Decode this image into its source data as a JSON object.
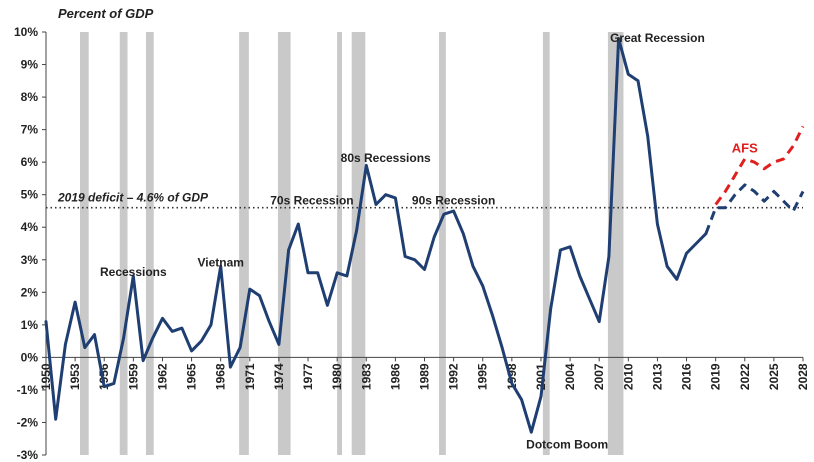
{
  "chart_data": {
    "type": "line",
    "ylabel": "Percent of GDP",
    "ylim": [
      -3,
      10
    ],
    "y_ticks": [
      "-3%",
      "-2%",
      "-1%",
      "0%",
      "1%",
      "2%",
      "3%",
      "4%",
      "5%",
      "6%",
      "7%",
      "8%",
      "9%",
      "10%"
    ],
    "y_tick_values": [
      -3,
      -2,
      -1,
      0,
      1,
      2,
      3,
      4,
      5,
      6,
      7,
      8,
      9,
      10
    ],
    "xlim": [
      1950,
      2028
    ],
    "x_ticks": [
      "1950",
      "1953",
      "1956",
      "1959",
      "1962",
      "1965",
      "1968",
      "1971",
      "1974",
      "1977",
      "1980",
      "1983",
      "1986",
      "1989",
      "1992",
      "1995",
      "1998",
      "2001",
      "2004",
      "2007",
      "2010",
      "2013",
      "2016",
      "2019",
      "2022",
      "2025",
      "2028"
    ],
    "x_tick_values": [
      1950,
      1953,
      1956,
      1959,
      1962,
      1965,
      1968,
      1971,
      1974,
      1977,
      1980,
      1983,
      1986,
      1989,
      1992,
      1995,
      1998,
      2001,
      2004,
      2007,
      2010,
      2013,
      2016,
      2019,
      2022,
      2025,
      2028
    ],
    "recessions": [
      [
        1953.5,
        1954.4
      ],
      [
        1957.6,
        1958.4
      ],
      [
        1960.3,
        1961.1
      ],
      [
        1969.9,
        1970.9
      ],
      [
        1973.9,
        1975.2
      ],
      [
        1980.0,
        1980.5
      ],
      [
        1981.5,
        1982.9
      ],
      [
        1990.5,
        1991.2
      ],
      [
        2001.2,
        2001.9
      ],
      [
        2007.9,
        2009.5
      ]
    ],
    "series": [
      {
        "color": "#1f3f73",
        "style": "solid",
        "x": [
          1950,
          1951,
          1952,
          1953,
          1954,
          1955,
          1956,
          1957,
          1958,
          1959,
          1960,
          1961,
          1962,
          1963,
          1964,
          1965,
          1966,
          1967,
          1968,
          1969,
          1970,
          1971,
          1972,
          1973,
          1974,
          1975,
          1976,
          1977,
          1978,
          1979,
          1980,
          1981,
          1982,
          1983,
          1984,
          1985,
          1986,
          1987,
          1988,
          1989,
          1990,
          1991,
          1992,
          1993,
          1994,
          1995,
          1996,
          1997,
          1998,
          1999,
          2000,
          2001,
          2002,
          2003,
          2004,
          2005,
          2006,
          2007,
          2008,
          2009,
          2010,
          2011,
          2012,
          2013,
          2014,
          2015,
          2016,
          2017,
          2018
        ],
        "values": [
          1.1,
          -1.9,
          0.4,
          1.7,
          0.3,
          0.7,
          -0.9,
          -0.8,
          0.6,
          2.5,
          -0.1,
          0.6,
          1.2,
          0.8,
          0.9,
          0.2,
          0.5,
          1.0,
          2.8,
          -0.3,
          0.3,
          2.1,
          1.9,
          1.1,
          0.4,
          3.3,
          4.1,
          2.6,
          2.6,
          1.6,
          2.6,
          2.5,
          3.9,
          5.9,
          4.7,
          5.0,
          4.9,
          3.1,
          3.0,
          2.7,
          3.7,
          4.4,
          4.5,
          3.8,
          2.8,
          2.2,
          1.3,
          0.3,
          -0.8,
          -1.3,
          -2.3,
          -1.2,
          1.5,
          3.3,
          3.4,
          2.5,
          1.8,
          1.1,
          3.1,
          9.8,
          8.7,
          8.5,
          6.8,
          4.1,
          2.8,
          2.4,
          3.2,
          3.5,
          3.8
        ]
      },
      {
        "color": "#1f3f73",
        "style": "dashed",
        "x": [
          2018,
          2019,
          2020,
          2021,
          2022,
          2023,
          2024,
          2025,
          2026,
          2027,
          2028
        ],
        "values": [
          3.8,
          4.6,
          4.6,
          5.0,
          5.3,
          5.1,
          4.8,
          5.1,
          4.8,
          4.5,
          5.1
        ]
      },
      {
        "name": "AFS",
        "color": "#e02020",
        "style": "dashed",
        "x": [
          2019,
          2020,
          2021,
          2022,
          2023,
          2024,
          2025,
          2026,
          2027,
          2028
        ],
        "values": [
          4.7,
          5.1,
          5.6,
          6.1,
          6.0,
          5.8,
          6.0,
          6.1,
          6.5,
          7.1
        ]
      }
    ],
    "reference_line": {
      "label": "2019 deficit – 4.6% of GDP",
      "value": 4.6
    },
    "annotations": [
      {
        "text": "Recessions",
        "x": 1959,
        "y": 2.5
      },
      {
        "text": "Vietnam",
        "x": 1968,
        "y": 2.8
      },
      {
        "text": "70s Recession",
        "x": 1977.4,
        "y": 4.7
      },
      {
        "text": "80s Recessions",
        "x": 1985,
        "y": 6.0
      },
      {
        "text": "90s Recession",
        "x": 1992,
        "y": 4.7
      },
      {
        "text": "Great Recession",
        "x": 2013,
        "y": 9.7
      },
      {
        "text": "Dotcom Boom",
        "x": 2003.7,
        "y": -2.8
      },
      {
        "text": "AFS",
        "x": 2022,
        "y": 6.3
      }
    ]
  }
}
